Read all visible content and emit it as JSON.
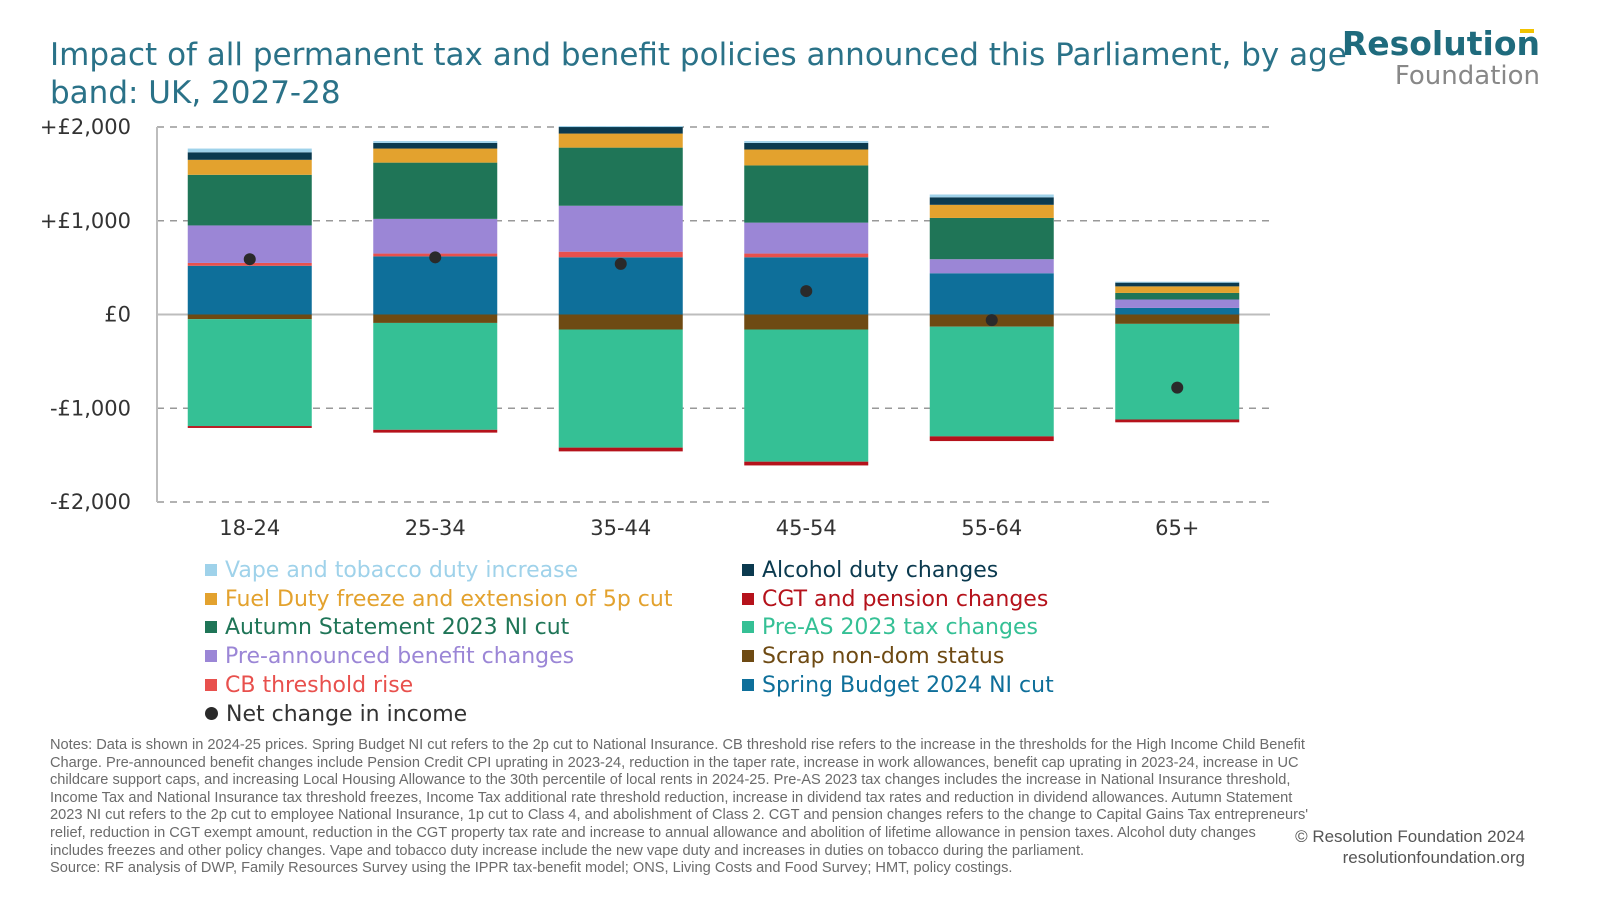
{
  "header": {
    "title": "Impact of all permanent tax and benefit policies announced this Parliament, by age band: UK, 2027-28"
  },
  "logo": {
    "line1": "Resolution",
    "line2": "Foundation"
  },
  "chart_data": {
    "type": "bar",
    "stacked": true,
    "categories": [
      "18-24",
      "25-34",
      "35-44",
      "45-54",
      "55-64",
      "65+"
    ],
    "y_ticks": [
      "+£2,000",
      "+£1,000",
      "£0",
      "-£1,000",
      "-£2,000"
    ],
    "ylim": [
      -2000,
      2000
    ],
    "grid": "dashed horizontal",
    "series": [
      {
        "name": "Spring Budget 2024 NI cut",
        "color": "#0e6f9a",
        "values": [
          520,
          620,
          610,
          610,
          440,
          70
        ]
      },
      {
        "name": "CB threshold rise",
        "color": "#e8504d",
        "values": [
          30,
          30,
          60,
          40,
          0,
          0
        ]
      },
      {
        "name": "Pre-announced benefit changes",
        "color": "#9b86d6",
        "values": [
          400,
          370,
          490,
          330,
          150,
          90
        ]
      },
      {
        "name": "Autumn Statement 2023 NI cut",
        "color": "#1f7557",
        "values": [
          540,
          600,
          620,
          610,
          440,
          70
        ]
      },
      {
        "name": "Fuel Duty freeze and extension of 5p cut",
        "color": "#e3a22e",
        "values": [
          160,
          150,
          150,
          170,
          140,
          70
        ]
      },
      {
        "name": "Alcohol duty changes",
        "color": "#0b3a4f",
        "values": [
          80,
          60,
          70,
          70,
          80,
          40
        ]
      },
      {
        "name": "Vape and tobacco duty increase",
        "color": "#9fd2ea",
        "values": [
          40,
          20,
          10,
          20,
          30,
          10
        ]
      },
      {
        "name": "Scrap non-dom status",
        "color": "#6e4a13",
        "values": [
          -50,
          -90,
          -160,
          -160,
          -130,
          -100
        ]
      },
      {
        "name": "Pre-AS 2023 tax changes",
        "color": "#35c095",
        "values": [
          -1140,
          -1140,
          -1260,
          -1410,
          -1170,
          -1020
        ]
      },
      {
        "name": "CGT and pension changes",
        "color": "#b5121b",
        "values": [
          -20,
          -30,
          -40,
          -40,
          -50,
          -30
        ]
      }
    ],
    "net_change": {
      "name": "Net change in income",
      "color": "#2a2a2a",
      "values": [
        590,
        610,
        540,
        250,
        -60,
        -780
      ]
    }
  },
  "legend": [
    {
      "label": "Vape and tobacco duty increase",
      "color": "#9fd2ea"
    },
    {
      "label": "Alcohol duty changes",
      "color": "#0b3a4f"
    },
    {
      "label": "Fuel Duty freeze and extension of 5p cut",
      "color": "#e3a22e"
    },
    {
      "label": "CGT and pension changes",
      "color": "#b5121b"
    },
    {
      "label": "Autumn Statement 2023 NI cut",
      "color": "#1f7557"
    },
    {
      "label": "Pre-AS 2023 tax changes",
      "color": "#35c095"
    },
    {
      "label": "Pre-announced benefit changes",
      "color": "#9b86d6"
    },
    {
      "label": "Scrap non-dom status",
      "color": "#6e4a13"
    },
    {
      "label": "CB threshold rise",
      "color": "#e8504d"
    },
    {
      "label": "Spring Budget 2024 NI cut",
      "color": "#0e6f9a"
    },
    {
      "label": "Net change in income",
      "color": "#2a2a2a"
    }
  ],
  "notes": "Notes: Data is shown in 2024-25 prices. Spring Budget NI cut refers to the 2p cut to National Insurance. CB threshold rise refers to the increase in the thresholds for the High Income Child Benefit Charge. Pre-announced benefit changes include Pension Credit CPI uprating in 2023-24, reduction in the taper rate, increase in work allowances, benefit cap uprating in 2023-24, increase in UC childcare support caps, and increasing Local Housing Allowance to the 30th percentile of local rents in 2024-25. Pre-AS 2023 tax changes includes the increase in National Insurance threshold, Income Tax and National Insurance tax threshold freezes, Income Tax additional rate threshold reduction, increase in dividend tax rates and reduction in dividend allowances. Autumn Statement 2023 NI cut refers to the 2p cut to employee National Insurance, 1p cut to Class 4, and abolishment of Class 2. CGT and pension changes refers to the change to Capital Gains Tax entrepreneurs' relief, reduction in CGT exempt amount, reduction in the CGT property tax rate and increase to annual allowance and abolition of lifetime allowance in pension taxes. Alcohol duty changes includes freezes and other policy changes. Vape and tobacco duty increase include the new vape duty and increases in duties on tobacco during the parliament.",
  "source": "Source: RF analysis of DWP, Family Resources Survey using the IPPR tax-benefit model; ONS, Living Costs and Food Survey; HMT, policy costings.",
  "footer": {
    "copyright": "© Resolution Foundation 2024",
    "website": "resolutionfoundation.org"
  }
}
